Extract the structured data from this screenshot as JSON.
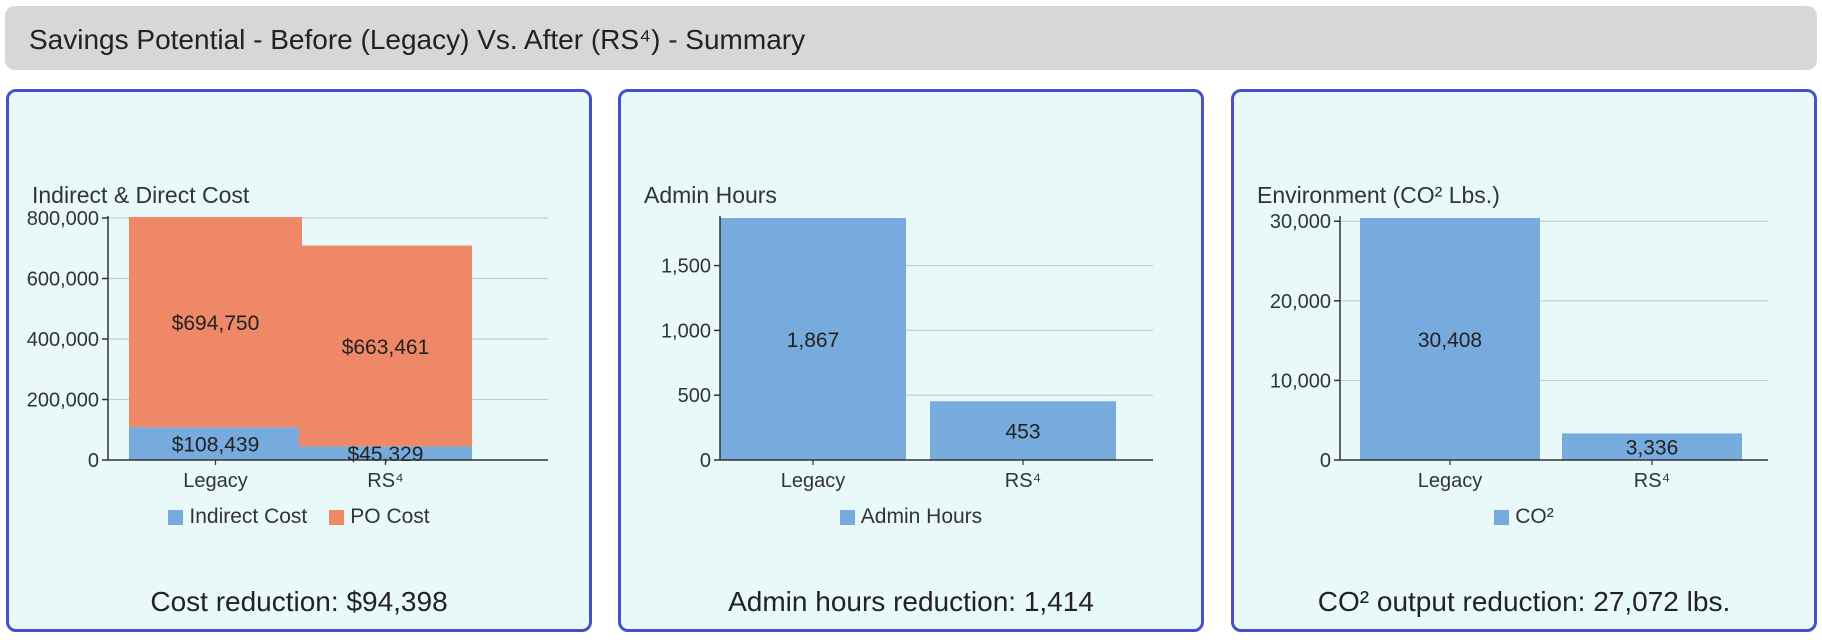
{
  "header": {
    "title": "Savings Potential - Before (Legacy) Vs. After (RS⁴) - Summary"
  },
  "colors": {
    "blue": "#77aadd",
    "orange": "#ee8866",
    "border": "#4651c9",
    "panel_bg": "#e9f8f8"
  },
  "panels": [
    {
      "footer": "Cost reduction: $94,398"
    },
    {
      "footer": "Admin hours reduction: 1,414"
    },
    {
      "footer": "CO² output reduction: 27,072 lbs."
    }
  ],
  "chart_data": [
    {
      "type": "bar",
      "stacked": true,
      "title": "Indirect & Direct Cost",
      "categories": [
        "Legacy",
        "RS⁴"
      ],
      "series": [
        {
          "name": "Indirect Cost",
          "values": [
            108439,
            45329
          ],
          "labels": [
            "$108,439",
            "$45,329"
          ],
          "color": "#77aadd"
        },
        {
          "name": "PO Cost",
          "values": [
            694750,
            663461
          ],
          "labels": [
            "$694,750",
            "$663,461"
          ],
          "color": "#ee8866"
        }
      ],
      "ylim": [
        0,
        800000
      ],
      "yticks": [
        0,
        200000,
        400000,
        600000,
        800000
      ],
      "ytick_labels": [
        "0",
        "200,000",
        "400,000",
        "600,000",
        "800,000"
      ],
      "grid": true,
      "legend": "bottom"
    },
    {
      "type": "bar",
      "title": "Admin Hours",
      "categories": [
        "Legacy",
        "RS⁴"
      ],
      "series": [
        {
          "name": "Admin Hours",
          "values": [
            1867,
            453
          ],
          "labels": [
            "1,867",
            "453"
          ],
          "color": "#77aadd"
        }
      ],
      "ylim": [
        0,
        1867
      ],
      "yticks": [
        0,
        500,
        1000,
        1500
      ],
      "ytick_labels": [
        "0",
        "500",
        "1,000",
        "1,500"
      ],
      "grid": true,
      "legend": "bottom"
    },
    {
      "type": "bar",
      "title": "Environment (CO² Lbs.)",
      "categories": [
        "Legacy",
        "RS⁴"
      ],
      "series": [
        {
          "name": "CO²",
          "values": [
            30408,
            3336
          ],
          "labels": [
            "30,408",
            "3,336"
          ],
          "color": "#77aadd"
        }
      ],
      "ylim": [
        0,
        30408
      ],
      "yticks": [
        0,
        10000,
        20000,
        30000
      ],
      "ytick_labels": [
        "0",
        "10,000",
        "20,000",
        "30,000"
      ],
      "grid": true,
      "legend": "bottom"
    }
  ]
}
